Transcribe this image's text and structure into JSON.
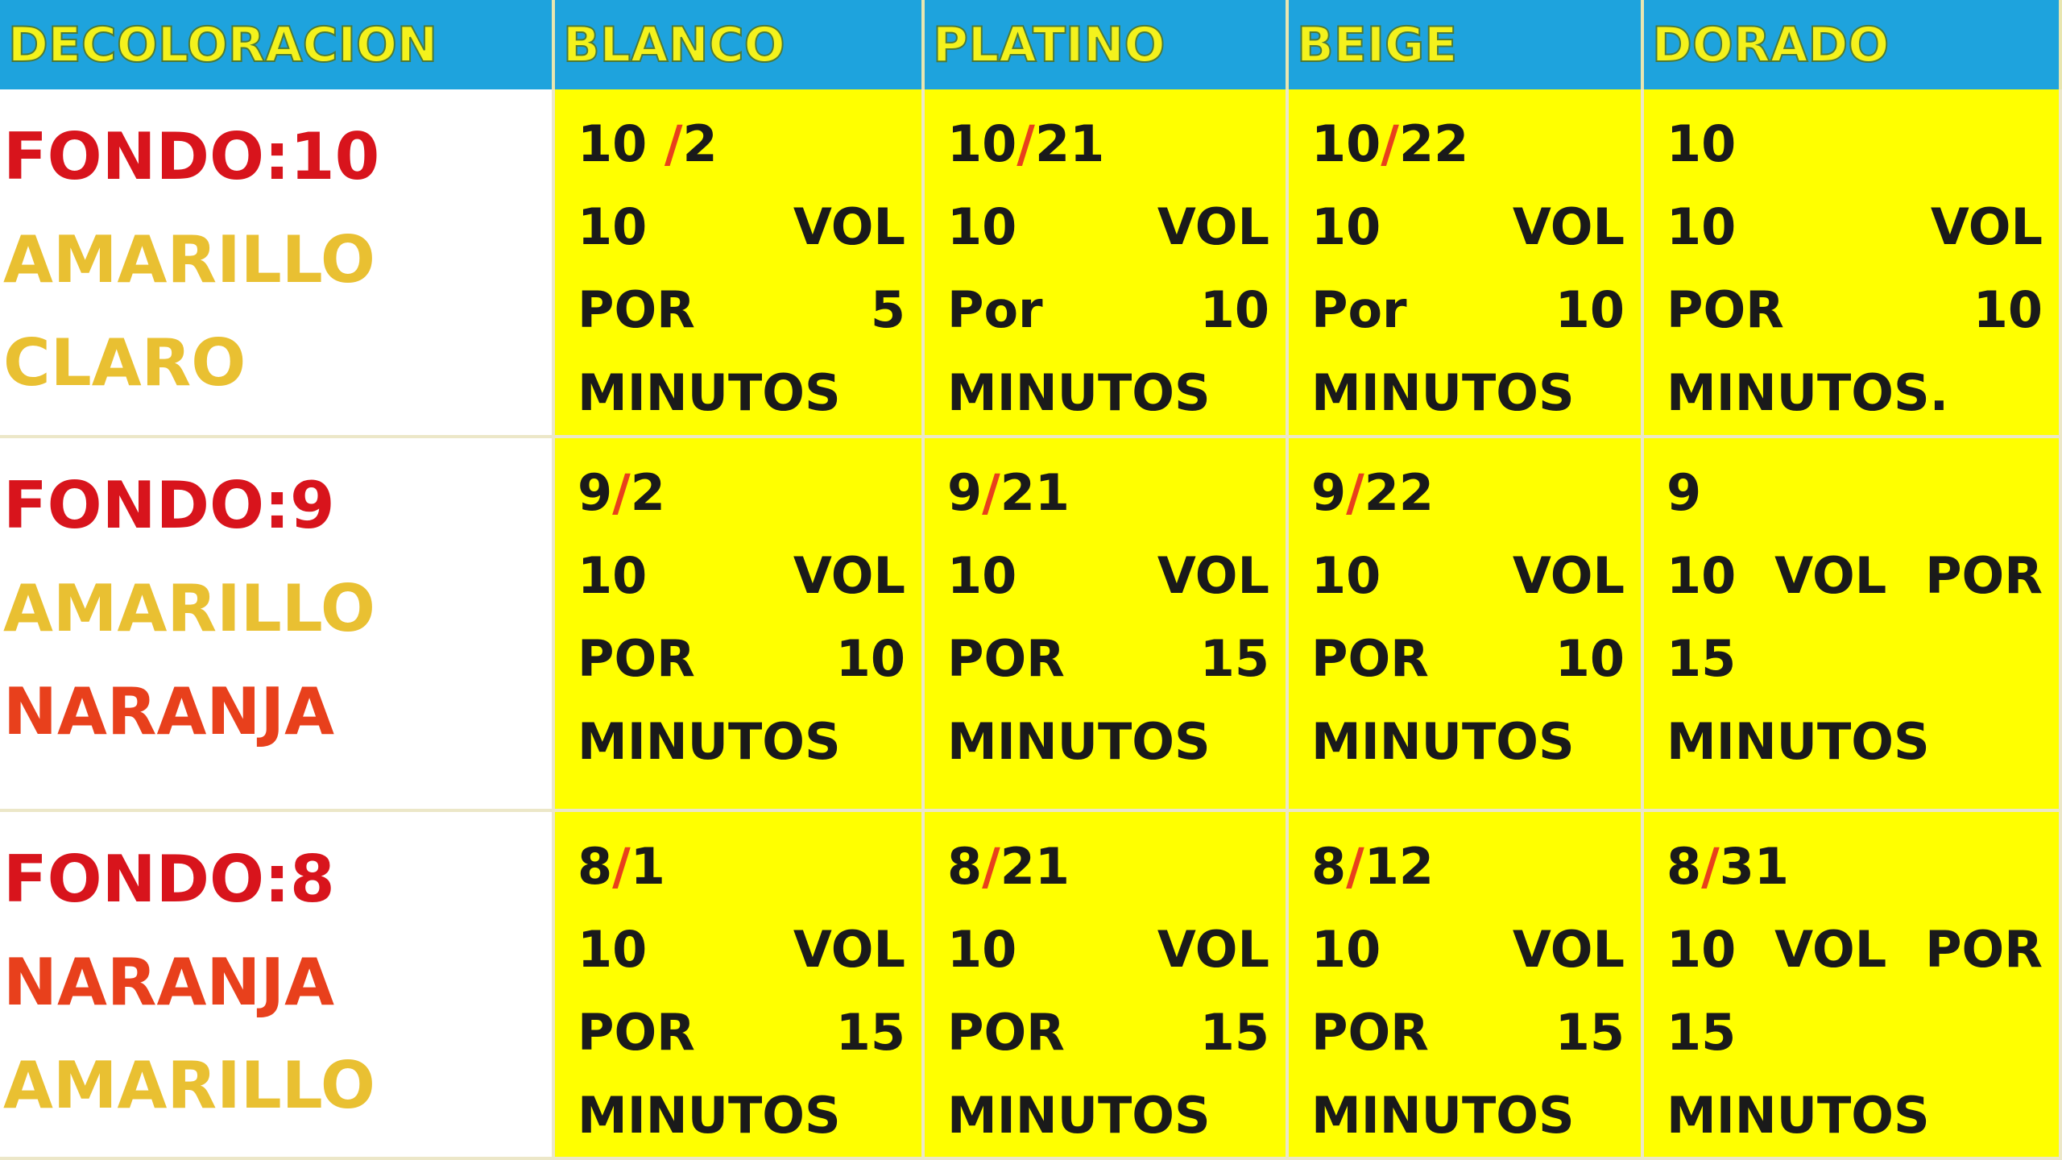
{
  "table": {
    "header": [
      "DECOLORACION",
      "BLANCO",
      "PLATINO",
      "BEIGE",
      "DORADO"
    ],
    "rows": [
      {
        "label": [
          {
            "text": "FONDO:10",
            "color": "#d8141c"
          },
          {
            "text": "AMARILLO",
            "color": "#e9c032"
          },
          {
            "text": "CLARO",
            "color": "#e9c032"
          }
        ],
        "cells": [
          {
            "code": [
              "10 ",
              "/",
              "2"
            ],
            "lines": [
              "10 VOL",
              "POR 5",
              "MINUTOS"
            ]
          },
          {
            "code": [
              "10",
              "/",
              "21"
            ],
            "lines": [
              "10 VOL",
              "Por 10",
              "MINUTOS"
            ]
          },
          {
            "code": [
              "10",
              "/",
              "22"
            ],
            "lines": [
              "10 VOL",
              "Por 10",
              "MINUTOS"
            ]
          },
          {
            "code": [
              "10"
            ],
            "lines": [
              "10 VOL",
              "POR 10",
              "MINUTOS."
            ]
          }
        ]
      },
      {
        "label": [
          {
            "text": "FONDO:9",
            "color": "#d8141c"
          },
          {
            "text": "AMARILLO",
            "color": "#e9c032"
          },
          {
            "text": "NARANJA",
            "color": "#e8401c"
          }
        ],
        "cells": [
          {
            "code": [
              "9",
              "/",
              "2"
            ],
            "lines": [
              "10 VOL",
              "POR 10",
              "MINUTOS"
            ]
          },
          {
            "code": [
              "9",
              "/",
              "21"
            ],
            "lines": [
              "10 VOL",
              "POR 15",
              "MINUTOS"
            ]
          },
          {
            "code": [
              "9",
              "/",
              "22"
            ],
            "lines": [
              "10 VOL",
              "POR 10",
              "MINUTOS"
            ]
          },
          {
            "code": [
              "9"
            ],
            "lines": [
              "10 VOL POR",
              "15",
              "MINUTOS"
            ]
          }
        ]
      },
      {
        "label": [
          {
            "text": "FONDO:8",
            "color": "#d8141c"
          },
          {
            "text": "NARANJA",
            "color": "#e8401c"
          },
          {
            "text": "AMARILLO",
            "color": "#e9c032"
          }
        ],
        "cells": [
          {
            "code": [
              "8",
              "/",
              "1"
            ],
            "lines": [
              "10 VOL",
              "POR 15",
              "MINUTOS"
            ]
          },
          {
            "code": [
              "8",
              "/",
              "21"
            ],
            "lines": [
              "10 VOL",
              "POR 15",
              "MINUTOS"
            ]
          },
          {
            "code": [
              "8",
              "/",
              "12"
            ],
            "lines": [
              "10 VOL",
              "POR 15",
              "MINUTOS"
            ]
          },
          {
            "code": [
              "8",
              "/",
              "31"
            ],
            "lines": [
              "10 VOL POR",
              "15",
              "MINUTOS"
            ]
          }
        ]
      }
    ]
  }
}
